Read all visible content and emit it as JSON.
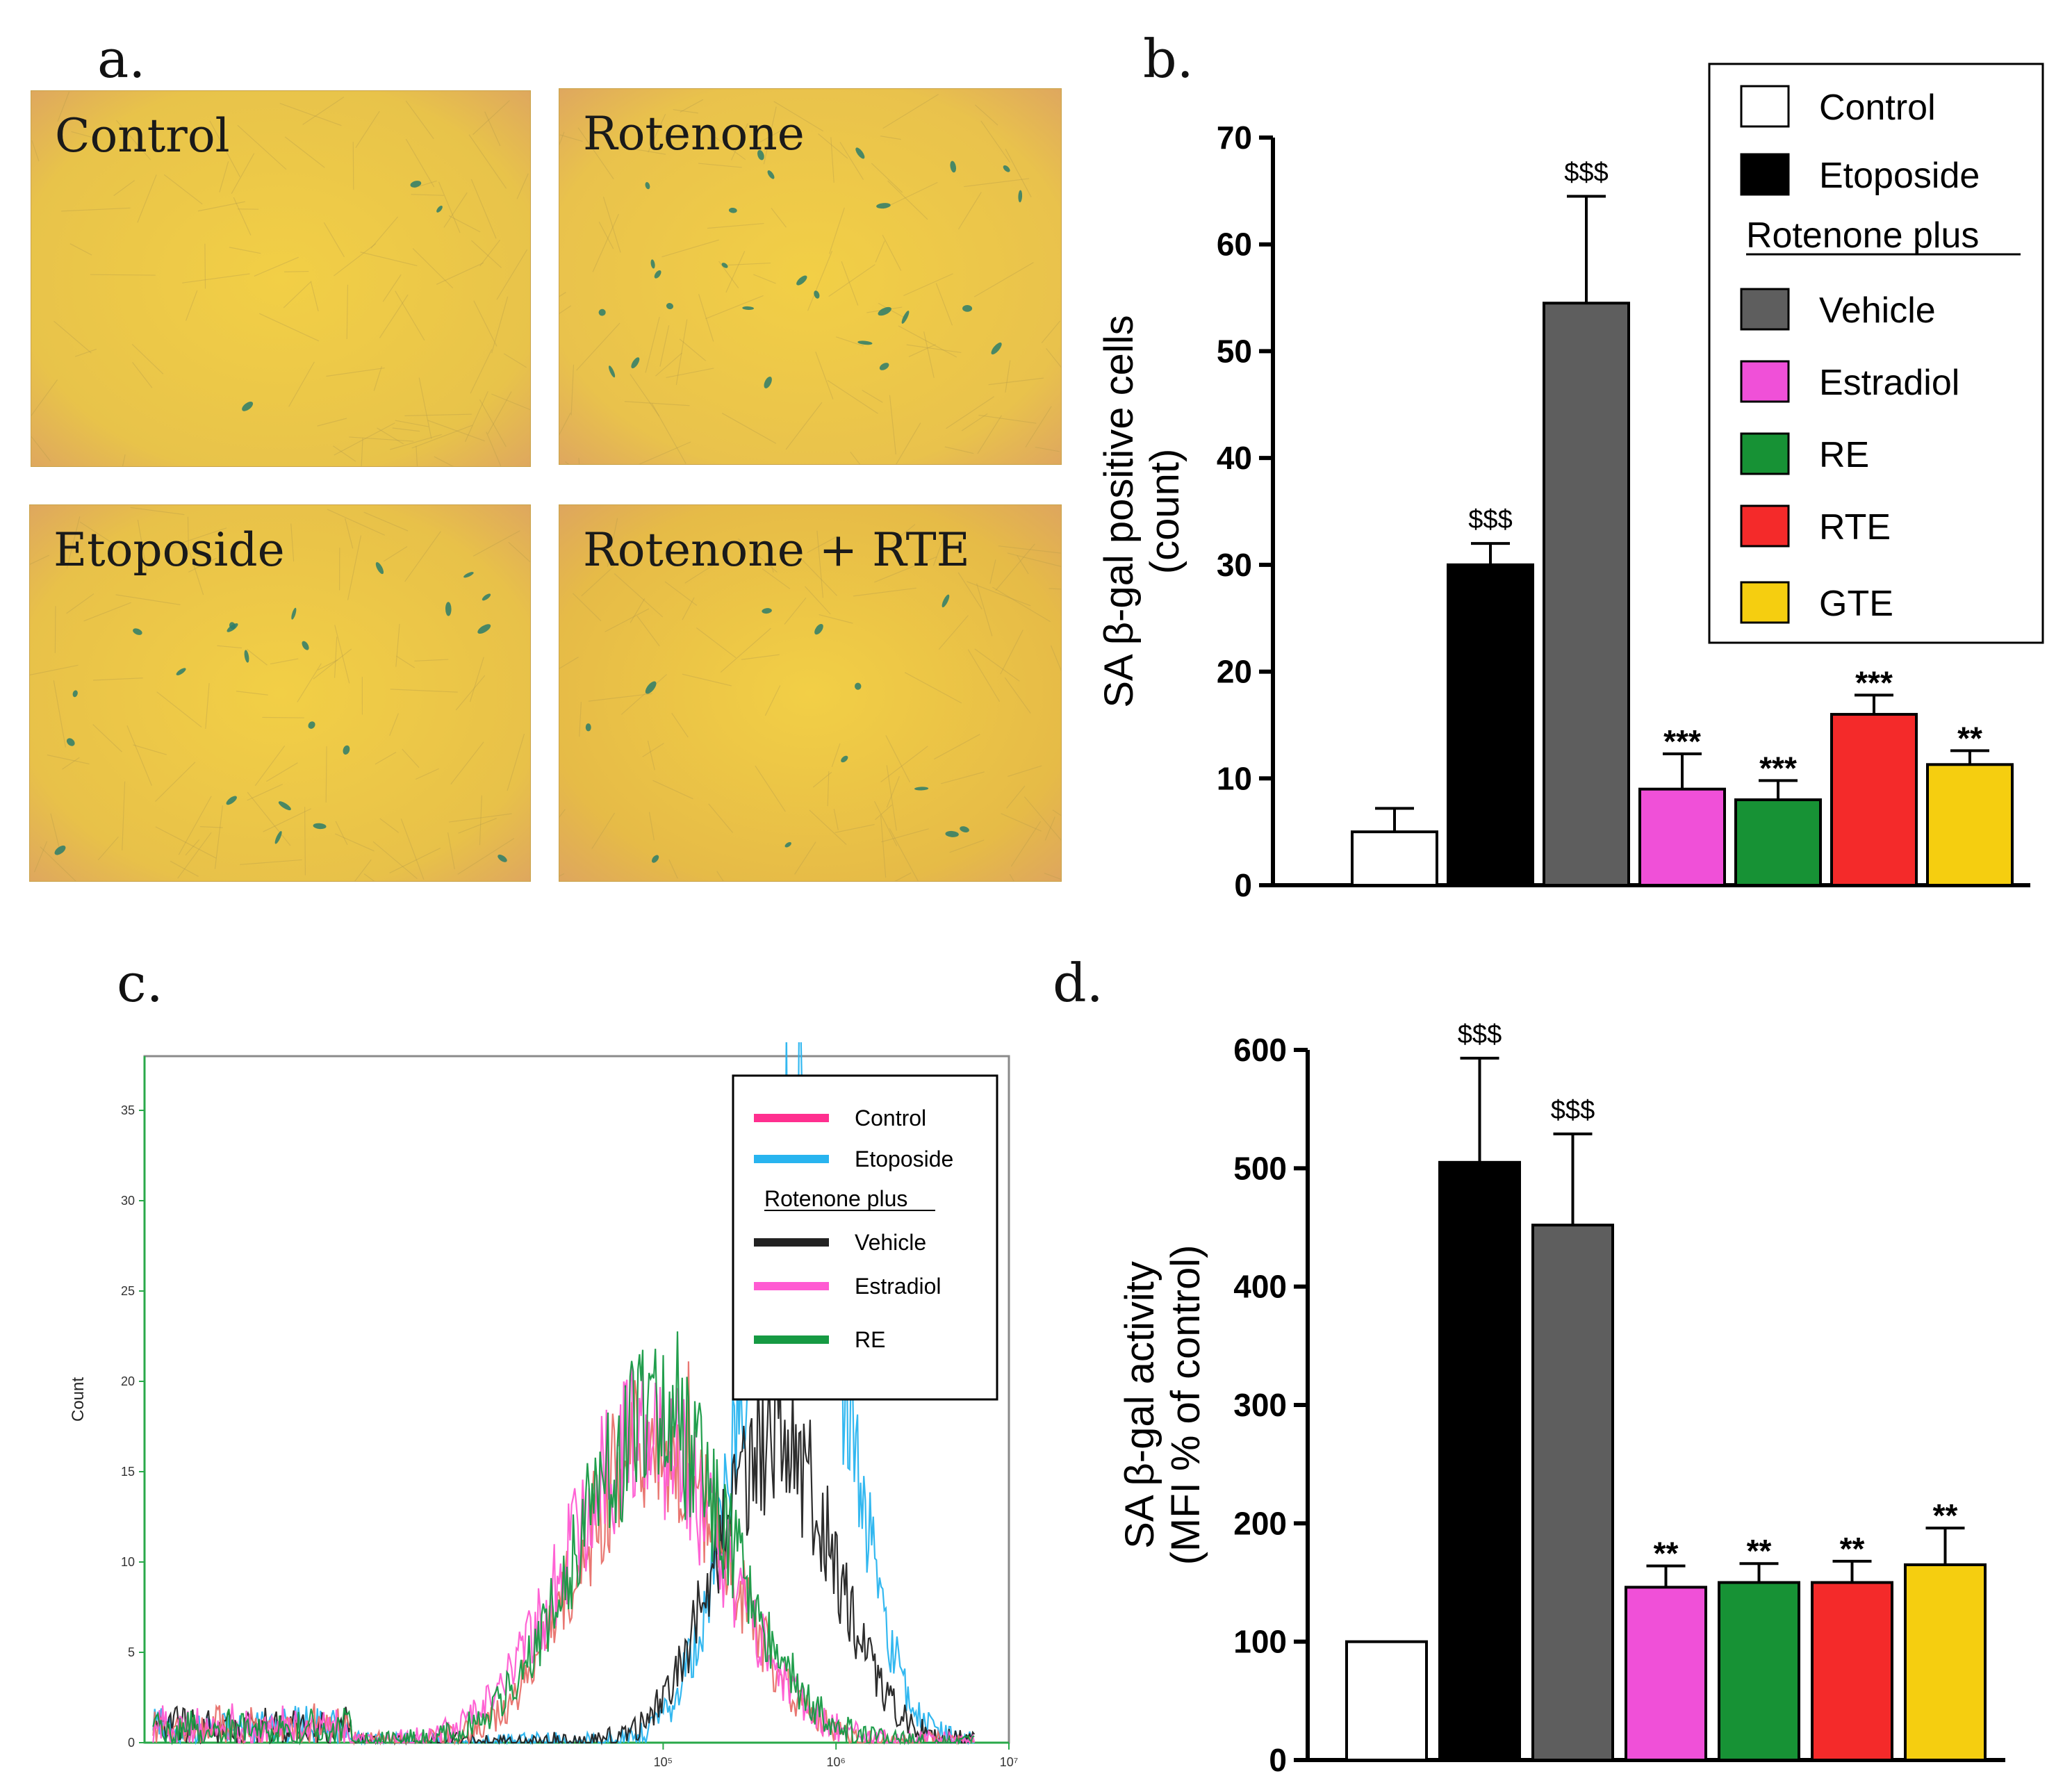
{
  "figure": {
    "panel_labels": [
      "a.",
      "b.",
      "c.",
      "d."
    ]
  },
  "micrographs": [
    {
      "label": "Control",
      "bg": "#e8c34a",
      "stains": 3
    },
    {
      "label": "Rotenone",
      "bg": "#e9c24c",
      "stains": 26
    },
    {
      "label": "Etoposide",
      "bg": "#e8c149",
      "stains": 22
    },
    {
      "label": "Rotenone + RTE",
      "bg": "#e6bb47",
      "stains": 12
    }
  ],
  "chart_data": [
    {
      "type": "bar",
      "panel": "b",
      "ylabel_lines": [
        "SA β-gal positive cells",
        "(count)"
      ],
      "ylim": [
        0,
        70
      ],
      "yticks": [
        "0",
        "10",
        "20",
        "30",
        "40",
        "50",
        "60",
        "70"
      ],
      "categories": [
        "Control",
        "Etoposide",
        "Vehicle",
        "Estradiol",
        "RE",
        "RTE",
        "GTE"
      ],
      "values": [
        5,
        30,
        54.5,
        9,
        8,
        16,
        11.3
      ],
      "errors": [
        2.2,
        2.0,
        10,
        3.3,
        1.8,
        1.8,
        1.3
      ],
      "annotations": [
        "",
        "$$$",
        "$$$",
        "***",
        "***",
        "***",
        "**"
      ],
      "colors": [
        "#ffffff",
        "#000000",
        "#5e5e5e",
        "#f050d8",
        "#179235",
        "#f42a2a",
        "#f5ce10"
      ],
      "legend": {
        "items": [
          {
            "label": "Control",
            "color": "#ffffff"
          },
          {
            "label": "Etoposide",
            "color": "#000000"
          },
          {
            "label": "Rotenone plus",
            "header": true
          },
          {
            "label": "Vehicle",
            "color": "#5e5e5e"
          },
          {
            "label": "Estradiol",
            "color": "#f050d8"
          },
          {
            "label": "RE",
            "color": "#179235"
          },
          {
            "label": "RTE",
            "color": "#f42a2a"
          },
          {
            "label": "GTE",
            "color": "#f5ce10"
          }
        ]
      }
    },
    {
      "type": "line",
      "panel": "c",
      "ylabel": "Count",
      "ylim": [
        0,
        38
      ],
      "yticks": [
        "0",
        "5",
        "10",
        "15",
        "20",
        "25",
        "30",
        "35"
      ],
      "xscale": "log",
      "xlim": [
        100,
        10000000
      ],
      "xticks": [
        "10⁵",
        "10⁶",
        "10⁷"
      ],
      "series": [
        {
          "name": "Control",
          "color": "#ff2f8f",
          "draw_color": "#e8706a",
          "peak_x": 4.95,
          "peak_y": 17,
          "width": 0.42
        },
        {
          "name": "Etoposide",
          "color": "#28b4ef",
          "peak_x": 5.75,
          "peak_y": 33,
          "width": 0.3
        },
        {
          "name": "Vehicle",
          "color": "#222222",
          "peak_x": 5.65,
          "peak_y": 17,
          "width": 0.33
        },
        {
          "name": "Estradiol",
          "color": "#ff5bd2",
          "peak_x": 4.9,
          "peak_y": 17,
          "width": 0.45
        },
        {
          "name": "RE",
          "color": "#169a43",
          "peak_x": 4.95,
          "peak_y": 18,
          "width": 0.44
        }
      ],
      "legend": {
        "items": [
          {
            "label": "Control",
            "color": "#ff2f8f"
          },
          {
            "label": "Etoposide",
            "color": "#28b4ef"
          },
          {
            "label": "Rotenone plus",
            "header": true
          },
          {
            "label": "Vehicle",
            "color": "#222222"
          },
          {
            "label": "Estradiol",
            "color": "#ff5bd2"
          },
          {
            "label": "RE",
            "color": "#169a43"
          }
        ]
      }
    },
    {
      "type": "bar",
      "panel": "d",
      "ylabel_lines": [
        "SA β-gal activity",
        "(MFI % of control)"
      ],
      "ylim": [
        0,
        600
      ],
      "yticks": [
        "0",
        "100",
        "200",
        "300",
        "400",
        "500",
        "600"
      ],
      "categories": [
        "Control",
        "Etoposide",
        "Vehicle",
        "Estradiol",
        "RE",
        "RTE",
        "GTE"
      ],
      "values": [
        100,
        505,
        452,
        146,
        150,
        150,
        165
      ],
      "errors": [
        0,
        88,
        77,
        18,
        16,
        18,
        31
      ],
      "annotations": [
        "",
        "$$$",
        "$$$",
        "**",
        "**",
        "**",
        "**"
      ],
      "colors": [
        "#ffffff",
        "#000000",
        "#5e5e5e",
        "#f050d8",
        "#179235",
        "#f42a2a",
        "#f5ce10"
      ]
    }
  ]
}
